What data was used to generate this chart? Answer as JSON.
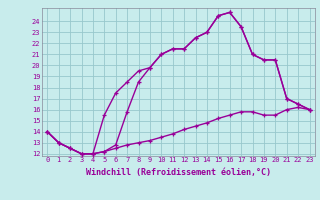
{
  "xlabel": "Windchill (Refroidissement éolien,°C)",
  "bg_color": "#c8ecec",
  "grid_color": "#98c8cc",
  "line_color": "#990099",
  "xlim": [
    -0.5,
    23.5
  ],
  "ylim": [
    11.8,
    25.2
  ],
  "xticks": [
    0,
    1,
    2,
    3,
    4,
    5,
    6,
    7,
    8,
    9,
    10,
    11,
    12,
    13,
    14,
    15,
    16,
    17,
    18,
    19,
    20,
    21,
    22,
    23
  ],
  "yticks": [
    12,
    13,
    14,
    15,
    16,
    17,
    18,
    19,
    20,
    21,
    22,
    23,
    24
  ],
  "line1_x": [
    0,
    1,
    2,
    3,
    4,
    5,
    6,
    7,
    8,
    9,
    10,
    11,
    12,
    13,
    14,
    15,
    16,
    17,
    18,
    19,
    20,
    21,
    22,
    23
  ],
  "line1_y": [
    14.0,
    13.0,
    12.5,
    12.0,
    12.0,
    15.5,
    17.5,
    18.5,
    19.5,
    19.8,
    21.0,
    21.5,
    21.5,
    22.5,
    23.0,
    24.5,
    24.8,
    23.5,
    21.0,
    20.5,
    20.5,
    17.0,
    16.5,
    16.0
  ],
  "line2_x": [
    0,
    1,
    2,
    3,
    4,
    5,
    6,
    7,
    8,
    9,
    10,
    11,
    12,
    13,
    14,
    15,
    16,
    17,
    18,
    19,
    20,
    21,
    22,
    23
  ],
  "line2_y": [
    14.0,
    13.0,
    12.5,
    12.0,
    12.0,
    12.2,
    12.8,
    15.8,
    18.5,
    19.8,
    21.0,
    21.5,
    21.5,
    22.5,
    23.0,
    24.5,
    24.8,
    23.5,
    21.0,
    20.5,
    20.5,
    17.0,
    16.5,
    16.0
  ],
  "line3_x": [
    0,
    1,
    2,
    3,
    4,
    5,
    6,
    7,
    8,
    9,
    10,
    11,
    12,
    13,
    14,
    15,
    16,
    17,
    18,
    19,
    20,
    21,
    22,
    23
  ],
  "line3_y": [
    14.0,
    13.0,
    12.5,
    12.0,
    12.0,
    12.2,
    12.5,
    12.8,
    13.0,
    13.2,
    13.5,
    13.8,
    14.2,
    14.5,
    14.8,
    15.2,
    15.5,
    15.8,
    15.8,
    15.5,
    15.5,
    16.0,
    16.2,
    16.0
  ],
  "linewidth": 1.0,
  "markersize": 3.5,
  "tick_fontsize": 5.0,
  "label_fontsize": 6.0
}
